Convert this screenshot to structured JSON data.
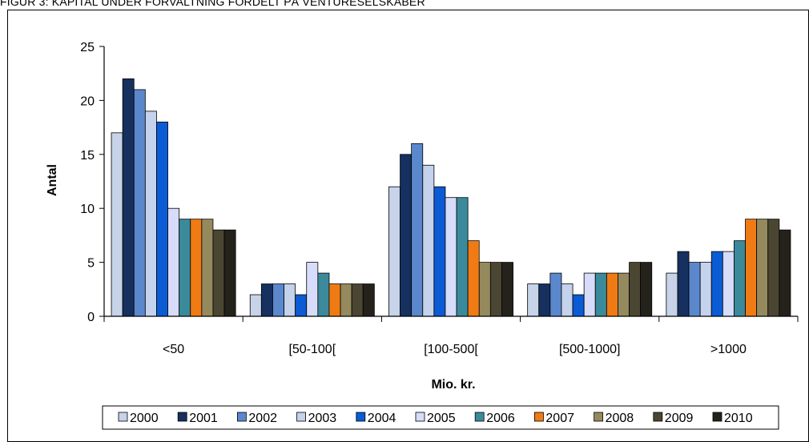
{
  "figure_title": "FIGUR 3: KAPITAL UNDER FORVALTNING FORDELT PÅ VENTURESELSKABER",
  "chart_data": {
    "type": "bar",
    "categories": [
      "<50",
      "[50-100[",
      "[100-500[",
      "[500-1000]",
      ">1000"
    ],
    "xlabel": "Mio. kr.",
    "ylabel": "Antal",
    "ylim": [
      0,
      25
    ],
    "yticks": [
      0,
      5,
      10,
      15,
      20,
      25
    ],
    "grid": false,
    "legend_position": "bottom",
    "series": [
      {
        "name": "2000",
        "color": "#c6d3e8",
        "values": [
          17,
          2,
          12,
          3,
          4
        ]
      },
      {
        "name": "2001",
        "color": "#16305f",
        "values": [
          22,
          3,
          15,
          3,
          6
        ]
      },
      {
        "name": "2002",
        "color": "#5b88cc",
        "values": [
          21,
          3,
          16,
          4,
          5
        ]
      },
      {
        "name": "2003",
        "color": "#c4d2ec",
        "values": [
          19,
          3,
          14,
          3,
          5
        ]
      },
      {
        "name": "2004",
        "color": "#0b5bd4",
        "values": [
          18,
          2,
          12,
          2,
          6
        ]
      },
      {
        "name": "2005",
        "color": "#d7dcfa",
        "values": [
          10,
          5,
          11,
          4,
          6
        ]
      },
      {
        "name": "2006",
        "color": "#3b8a9c",
        "values": [
          9,
          4,
          11,
          4,
          7
        ]
      },
      {
        "name": "2007",
        "color": "#f07b14",
        "values": [
          9,
          3,
          7,
          4,
          9
        ]
      },
      {
        "name": "2008",
        "color": "#948a5e",
        "values": [
          9,
          3,
          5,
          4,
          9
        ]
      },
      {
        "name": "2009",
        "color": "#4a4632",
        "values": [
          8,
          3,
          5,
          5,
          9
        ]
      },
      {
        "name": "2010",
        "color": "#24221a",
        "values": [
          8,
          3,
          5,
          5,
          8
        ]
      }
    ]
  }
}
